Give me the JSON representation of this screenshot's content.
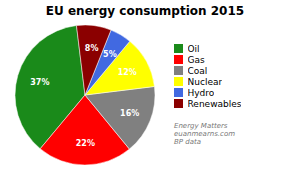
{
  "chart_data": {
    "type": "pie",
    "title": "EU energy consumption 2015",
    "categories": [
      "Oil",
      "Gas",
      "Coal",
      "Nuclear",
      "Hydro",
      "Renewables"
    ],
    "values": [
      37,
      22,
      16,
      12,
      5,
      8
    ],
    "value_labels": [
      "37%",
      "22%",
      "16%",
      "12%",
      "5%",
      "8%"
    ],
    "colors": [
      "#1a8a1a",
      "#FF0000",
      "#808080",
      "#FFFF00",
      "#4169E1",
      "#8B0000"
    ],
    "data_labels": true,
    "legend": "right",
    "annotations": [
      "Energy Matters",
      "euanmearns.com",
      "BP data"
    ]
  }
}
